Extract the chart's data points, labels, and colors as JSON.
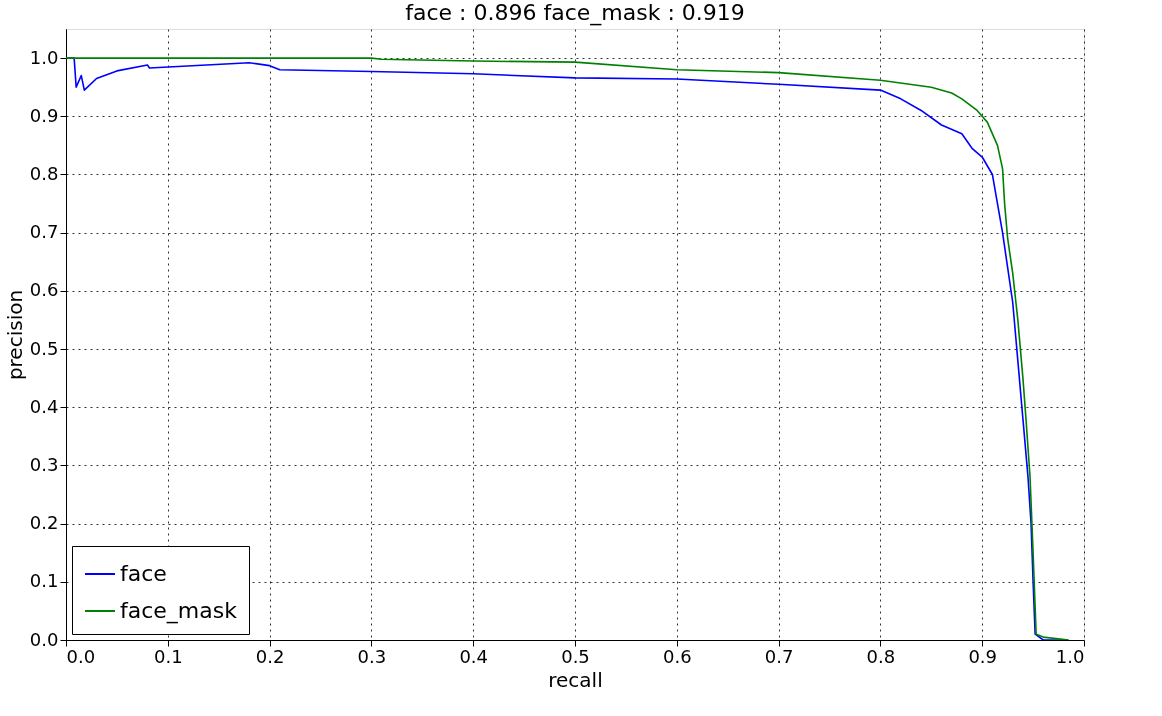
{
  "chart_data": {
    "type": "line",
    "title": "face : 0.896  face_mask : 0.919",
    "xlabel": "recall",
    "ylabel": "precision",
    "xlim": [
      0,
      1
    ],
    "ylim": [
      0,
      1.05
    ],
    "xticks": [
      {
        "value": 0,
        "label": "0.0"
      },
      0.1,
      0.2,
      0.3,
      0.4,
      0.5,
      0.6,
      0.7,
      0.8,
      0.9,
      {
        "value": 1,
        "label": "1.0"
      }
    ],
    "yticks": [
      {
        "value": 0,
        "label": "0.0"
      },
      0.1,
      0.2,
      0.3,
      0.4,
      0.5,
      0.6,
      0.7,
      0.8,
      0.9,
      {
        "value": 1,
        "label": "1.0"
      }
    ],
    "grid": true,
    "legend": "bottom left",
    "line_style": "solid",
    "marker": "none",
    "series": [
      {
        "name": "face",
        "color": "#0000ff",
        "x": [
          0.0,
          0.008,
          0.01,
          0.015,
          0.018,
          0.03,
          0.05,
          0.08,
          0.082,
          0.18,
          0.2,
          0.21,
          0.3,
          0.4,
          0.5,
          0.6,
          0.7,
          0.8,
          0.82,
          0.84,
          0.86,
          0.88,
          0.89,
          0.9,
          0.91,
          0.915,
          0.92,
          0.925,
          0.93,
          0.935,
          0.94,
          0.945,
          0.948,
          0.95,
          0.952,
          0.96,
          0.98
        ],
        "values": [
          1.0,
          1.0,
          0.95,
          0.97,
          0.945,
          0.965,
          0.978,
          0.988,
          0.983,
          0.992,
          0.987,
          0.98,
          0.977,
          0.973,
          0.966,
          0.964,
          0.955,
          0.945,
          0.93,
          0.91,
          0.885,
          0.87,
          0.845,
          0.83,
          0.8,
          0.75,
          0.7,
          0.64,
          0.58,
          0.48,
          0.38,
          0.28,
          0.2,
          0.1,
          0.01,
          0.0,
          0.0
        ]
      },
      {
        "name": "face_mask",
        "color": "#008000",
        "x": [
          0.0,
          0.3,
          0.31,
          0.4,
          0.5,
          0.6,
          0.7,
          0.8,
          0.85,
          0.87,
          0.88,
          0.895,
          0.905,
          0.915,
          0.92,
          0.922,
          0.925,
          0.93,
          0.935,
          0.94,
          0.943,
          0.947,
          0.95,
          0.953,
          0.96,
          0.985
        ],
        "values": [
          1.0,
          1.0,
          0.998,
          0.995,
          0.993,
          0.98,
          0.975,
          0.962,
          0.95,
          0.94,
          0.93,
          0.91,
          0.89,
          0.85,
          0.81,
          0.75,
          0.69,
          0.63,
          0.55,
          0.45,
          0.38,
          0.28,
          0.15,
          0.01,
          0.005,
          0.0
        ]
      }
    ]
  }
}
